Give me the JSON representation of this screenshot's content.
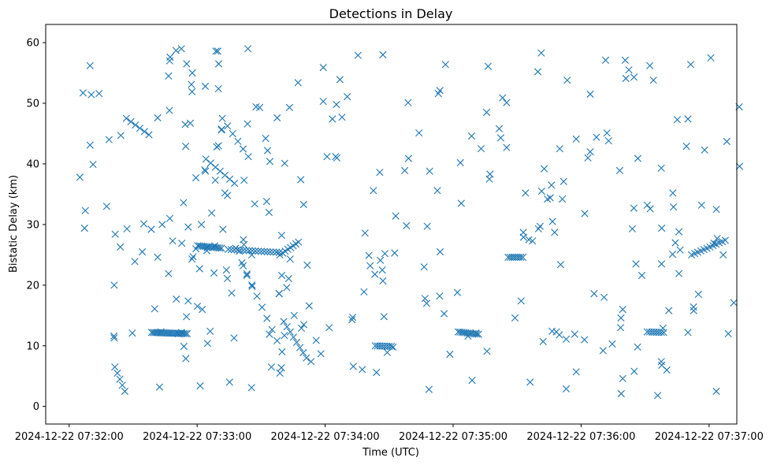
{
  "chart_data": {
    "type": "scatter",
    "title": "Detections in Delay",
    "xlabel": "Time (UTC)",
    "ylabel": "Bistatic Delay (km)",
    "marker": "x",
    "color": "#1f77b4",
    "grid": false,
    "xlim": [
      "2024-12-22 07:31:49",
      "2024-12-22 07:37:13"
    ],
    "ylim": [
      -2.9,
      63
    ],
    "x_ticks": [
      "2024-12-22 07:32:00",
      "2024-12-22 07:33:00",
      "2024-12-22 07:34:00",
      "2024-12-22 07:35:00",
      "2024-12-22 07:36:00",
      "2024-12-22 07:37:00"
    ],
    "y_ticks": [
      0,
      10,
      20,
      30,
      40,
      50,
      60
    ],
    "points_time_sec": [
      29.6,
      47.2,
      66.8,
      56.8,
      9.8,
      34.3,
      17.6,
      48.5,
      41.5,
      64.8,
      50.1,
      40.1,
      62.0,
      11.2,
      83.8,
      54.6,
      89.3,
      27.1,
      18.7,
      70.0,
      67.9,
      147.1,
      6.5,
      70.1,
      14.0,
      46.6,
      63.9,
      21.6,
      7.2,
      43.6,
      190.7,
      168.7,
      10.4,
      55.0,
      43.0,
      38.5,
      24.2,
      50.2,
      55.1,
      76.2,
      60.1,
      57.6,
      53.8,
      21.1,
      57.3,
      21.1,
      24.0,
      7.6,
      61.4,
      42.4,
      5.0,
      30.8,
      57.7,
      53.6,
      74.2,
      54.7,
      62.4,
      66.1,
      59.4,
      105.5,
      143.3,
      94.1,
      58.1,
      85.8,
      47.1,
      59.4,
      9.8,
      69.7,
      81.6,
      108.9,
      70.0,
      79.8,
      126.9,
      47.0,
      77.3,
      52.6,
      46.6,
      78.0,
      73.7,
      92.6,
      52.6,
      68.3,
      93.9,
      159.1,
      55.8,
      157.3,
      103.6,
      173.8,
      147.1,
      145.6,
      83.6,
      125.5,
      83.3,
      138.7,
      153.1,
      219.7,
      87.6,
      85.6,
      183.8,
      75.2,
      68.5,
      41.5,
      68.8,
      71.5,
      55.8,
      52.8,
      141.1,
      21.0,
      74.2,
      213.9,
      124.9,
      69.2,
      63.6,
      94.8,
      72.1,
      71.4,
      57.6,
      169.0,
      99.7,
      93.0,
      35.0,
      51.1,
      111.6,
      63.8,
      82.0,
      112.5,
      121.9,
      144.1,
      115.8,
      193.1,
      61.1,
      54.4,
      125.3,
      230.4,
      202.3,
      81.7,
      99.6,
      99.5,
      145.9,
      100.9,
      64.5,
      109.9,
      167.9,
      81.9,
      98.5,
      132.9,
      64.9,
      47.3,
      152.6,
      149.1,
      135.4,
      107.3,
      98.8,
      103.3,
      123.4,
      212.9,
      233.5,
      92.1,
      138.2,
      120.9,
      182.0,
      187.0,
      101.0,
      146.8,
      118.0,
      172.6,
      237.0,
      264.0,
      73.0,
      166.4,
      175.8,
      93.7,
      132.6,
      229.8,
      261.0,
      102.9,
      119.1,
      211.9,
      130.4,
      127.9,
      183.4,
      113.4,
      85.5,
      251.5,
      221.5,
      195.7,
      196.4,
      110.0,
      133.2,
      98.4,
      264.7,
      87.0,
      176.4,
      158.9,
      224.2,
      166.8,
      173.7,
      216.1,
      220.8,
      222.7,
      173.1,
      173.9,
      108.6,
      102.0,
      97.5,
      140.5,
      137.4,
      142.6,
      252.1,
      205.1,
      195.9,
      201.6,
      147.6,
      188.9,
      119.1,
      262.4,
      151.9,
      188.7,
      233.0,
      277.7,
      148.0,
      281.1,
      203.2,
      227.6,
      158.1,
      178.5,
      167.6,
      222.2,
      244.3,
      233.0,
      164.0,
      221.3,
      241.7,
      285.1,
      273.9,
      259.5,
      228.4,
      209.0,
      272.2,
      237.7,
      283.3,
      205.1,
      230.0,
      292.7,
      280.2,
      226.6,
      220.0,
      275.9,
      215.5,
      290.1,
      197.0,
      252.9,
      277.6,
      197.3,
      260.7,
      297.9,
      246.1,
      241.6,
      264.9,
      250.8,
      290.1,
      283.0,
      259.5,
      266.6,
      291.4,
      289.4,
      266.5,
      303.4,
      303.8,
      265.7,
      264.8,
      258.5,
      254.6,
      268.5,
      247.2,
      272.4,
      258.7,
      300.8,
      250.3,
      311.6,
      217.2,
      226.4,
      258.1,
      278.4,
      244.3,
      237.7,
      285.9,
      308.3,
      285.9,
      296.5,
      303.4,
      225.5,
      295.0,
      277.8,
      277.6,
      258.8,
      292.8,
      282.9,
      302.3,
      306.6,
      314.1,
      286.4,
      231.2,
      231.8,
      213.0,
      271.0,
      309.0,
      284.2,
      243.2,
      226.1,
      277.8,
      314.3
    ],
    "points_delay": [
      12.1,
      31.0,
      31.9,
      46.7,
      43.1,
      25.5,
      33.0,
      27.3,
      24.6,
      26.2,
      58.7,
      16.1,
      30.0,
      39.9,
      59.0,
      42.9,
      49.3,
      29.3,
      44.0,
      43.0,
      22.0,
      58.0,
      51.7,
      56.5,
      51.6,
      21.9,
      38.8,
      28.4,
      29.4,
      30.0,
      12.1,
      2.8,
      51.4,
      14.8,
      12.3,
      29.2,
      44.7,
      17.7,
      56.5,
      18.7,
      16.5,
      24.3,
      9.9,
      20.0,
      53.1,
      11.3,
      26.3,
      32.3,
      3.4,
      3.2,
      37.8,
      23.9,
      55.0,
      33.6,
      21.1,
      7.9,
      16.0,
      12.4,
      37.7,
      15.0,
      21.8,
      40.4,
      24.7,
      19.8,
      57.0,
      26.0,
      56.2,
      58.6,
      23.2,
      12.9,
      52.4,
      25.6,
      53.9,
      48.8,
      11.3,
      59.0,
      54.5,
      26.1,
      22.5,
      33.8,
      12.2,
      26.5,
      11.9,
      40.9,
      29.6,
      38.9,
      24.3,
      52.1,
      20.7,
      38.6,
      46.6,
      41.0,
      21.6,
      28.6,
      31.4,
      55.2,
      49.4,
      25.0,
      33.5,
      4.0,
      37.3,
      47.6,
      58.6,
      45.7,
      17.4,
      26.9,
      23.2,
      11.6,
      34.8,
      35.2,
      41.2,
      42.8,
      39.0,
      6.5,
      29.2,
      45.6,
      51.9,
      38.8,
      21.6,
      42.2,
      30.1,
      12.0,
      23.3,
      52.8,
      37.3,
      16.6,
      13.0,
      5.6,
      10.9,
      42.5,
      22.7,
      46.5,
      49.8,
      23.4,
      44.3,
      27.5,
      28.2,
      6.4,
      24.1,
      11.7,
      25.7,
      33.3,
      29.7,
      26.7,
      18.6,
      14.7,
      10.4,
      57.6,
      25.3,
      8.9,
      57.9,
      53.4,
      5.5,
      49.3,
      47.4,
      28.7,
      53.8,
      44.2,
      18.9,
      41.2,
      18.8,
      11.6,
      40.1,
      22.5,
      8.7,
      35.6,
      11.9,
      29.3,
      35.2,
      23.0,
      15.3,
      32.0,
      14.3,
      11.8,
      54.1,
      21.1,
      55.9,
      17.4,
      51.1,
      47.7,
      40.2,
      7.4,
      3.1,
      57.1,
      35.5,
      48.5,
      56.1,
      13.5,
      6.6,
      18.6,
      32.7,
      33.4,
      56.4,
      50.1,
      34.2,
      17.8,
      18.2,
      4.0,
      29.7,
      39.2,
      51.6,
      25.5,
      37.4,
      19.6,
      47.6,
      24.9,
      6.1,
      35.6,
      45.1,
      42.7,
      9.1,
      45.8,
      14.8,
      4.3,
      50.3,
      55.5,
      9.8,
      44.6,
      11.1,
      23.5,
      25.2,
      15.8,
      50.9,
      28.7,
      29.8,
      8.6,
      17.0,
      10.7,
      51.5,
      2.9,
      45.1,
      58.3,
      31.8,
      47.3,
      53.8,
      16.0,
      12.3,
      14.6,
      56.2,
      5.7,
      32.9,
      50.1,
      42.5,
      16.4,
      6.0,
      30.5,
      29.3,
      1.8,
      27.5,
      12.2,
      37.5,
      43.8,
      39.3,
      38.3,
      57.1,
      42.3,
      18.6,
      11.0,
      5.8,
      18.0,
      47.4,
      35.2,
      4.6,
      40.9,
      56.4,
      42.9,
      9.8,
      32.5,
      27.7,
      23.5,
      54.3,
      13.0,
      10.3,
      21.6,
      44.4,
      32.6,
      14.6,
      57.5,
      9.2,
      17.1,
      27.3,
      12.4,
      38.9,
      12.9,
      42.0,
      44.1,
      28.8,
      43.7,
      21.9,
      33.2,
      2.5,
      34.4,
      18.5,
      29.4,
      7.4,
      2.1,
      15.8,
      25.1,
      26.9,
      25.0,
      49.4,
      25.8,
      34.2,
      37.1,
      27.9,
      33.2,
      12.0,
      27.0,
      41.0,
      36.5,
      6.8,
      39.6,
      21.7,
      5.1,
      18.7,
      22.4,
      9.4,
      54.3,
      26.7,
      36.8,
      28.3,
      18.4,
      57.3
    ],
    "clusters": [
      {
        "t0": 60.3,
        "t1": 71.4,
        "d0": 26.5,
        "d1": 26.1,
        "n": 14
      },
      {
        "t0": 74.6,
        "t1": 98.5,
        "d0": 25.9,
        "d1": 25.4,
        "n": 18
      },
      {
        "t0": 98.8,
        "t1": 107.5,
        "d0": 25.0,
        "d1": 27.1,
        "n": 8
      },
      {
        "t0": 38.6,
        "t1": 55.3,
        "d0": 12.2,
        "d1": 12.0,
        "n": 22
      },
      {
        "t0": 143.5,
        "t1": 151.0,
        "d0": 10.0,
        "d1": 9.9,
        "n": 8
      },
      {
        "t0": 182.4,
        "t1": 191.9,
        "d0": 12.3,
        "d1": 11.9,
        "n": 12
      },
      {
        "t0": 205.8,
        "t1": 212.7,
        "d0": 24.6,
        "d1": 24.6,
        "n": 8
      },
      {
        "t0": 271.0,
        "t1": 278.7,
        "d0": 12.3,
        "d1": 12.2,
        "n": 8
      },
      {
        "t0": 291.8,
        "t1": 307.6,
        "d0": 25.0,
        "d1": 27.4,
        "n": 12
      },
      {
        "t0": 81.0,
        "t1": 99.8,
        "d0": 23.7,
        "d1": 9.0,
        "n": 9
      },
      {
        "t0": 100.6,
        "t1": 111.2,
        "d0": 14.0,
        "d1": 8.0,
        "n": 8
      },
      {
        "t0": 64.1,
        "t1": 77.5,
        "d0": 40.8,
        "d1": 36.8,
        "n": 7
      },
      {
        "t0": 71.8,
        "t1": 84.0,
        "d0": 47.5,
        "d1": 41.2,
        "n": 6
      },
      {
        "t0": 21.4,
        "t1": 26.1,
        "d0": 6.5,
        "d1": 2.5,
        "n": 5
      },
      {
        "t0": 26.8,
        "t1": 37.4,
        "d0": 47.5,
        "d1": 44.8,
        "n": 6
      }
    ]
  }
}
